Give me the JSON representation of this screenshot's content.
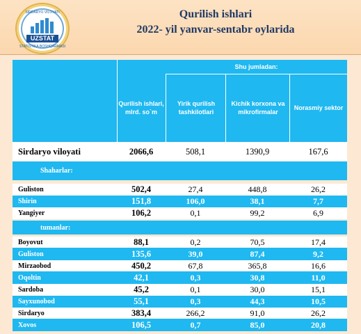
{
  "header": {
    "logo_top": "SIRDARYO VILOYATI",
    "logo_word": "UZSTAT",
    "logo_bottom": "STATISTIKA BOSHQARMASI",
    "title": "Qurilish   ishlari",
    "subtitle": "2022- yil yanvar-sentabr oylarida"
  },
  "table": {
    "group_header": "Shu jumladan:",
    "columns": [
      "Qurilish ishlari, mlrd. so`m",
      "Yirik qurilish tashkilotlari",
      "Kichik korxona va mikrofirmalar",
      "Norasmiy sektor"
    ],
    "total": {
      "name": "Sirdaryo viloyati",
      "values": [
        "2066,6",
        "508,1",
        "1390,9",
        "167,6"
      ]
    },
    "section_cities": "Shaharlar:",
    "cities": [
      {
        "name": "Guliston",
        "values": [
          "502,4",
          "27,4",
          "448,8",
          "26,2"
        ],
        "style": "white"
      },
      {
        "name": "Shirin",
        "values": [
          "151,8",
          "106,0",
          "38,1",
          "7,7"
        ],
        "style": "blue"
      },
      {
        "name": "Yangiyer",
        "values": [
          "106,2",
          "0,1",
          "99,2",
          "6,9"
        ],
        "style": "white"
      }
    ],
    "section_districts": "tumanlar:",
    "districts": [
      {
        "name": "Boyovut",
        "values": [
          "88,1",
          "0,2",
          "70,5",
          "17,4"
        ],
        "style": "white"
      },
      {
        "name": "Guliston",
        "values": [
          "135,6",
          "39,0",
          "87,4",
          "9,2"
        ],
        "style": "blue"
      },
      {
        "name": "Mirzaobod",
        "values": [
          "450,2",
          "67,8",
          "365,8",
          "16,6"
        ],
        "style": "white"
      },
      {
        "name": "Oqoltin",
        "values": [
          "42,1",
          "0,3",
          "30,8",
          "11,0"
        ],
        "style": "blue"
      },
      {
        "name": "Sardoba",
        "values": [
          "45,2",
          "0,1",
          "30,0",
          "15,1"
        ],
        "style": "white"
      },
      {
        "name": "Sayxunobod",
        "values": [
          "55,1",
          "0,3",
          "44,3",
          "10,5"
        ],
        "style": "blue"
      },
      {
        "name": "Sirdaryo",
        "values": [
          "383,4",
          "266,2",
          "91,0",
          "26,2"
        ],
        "style": "white"
      },
      {
        "name": "Xovos",
        "values": [
          "106,5",
          "0,7",
          "85,0",
          "20,8"
        ],
        "style": "blue"
      }
    ]
  }
}
